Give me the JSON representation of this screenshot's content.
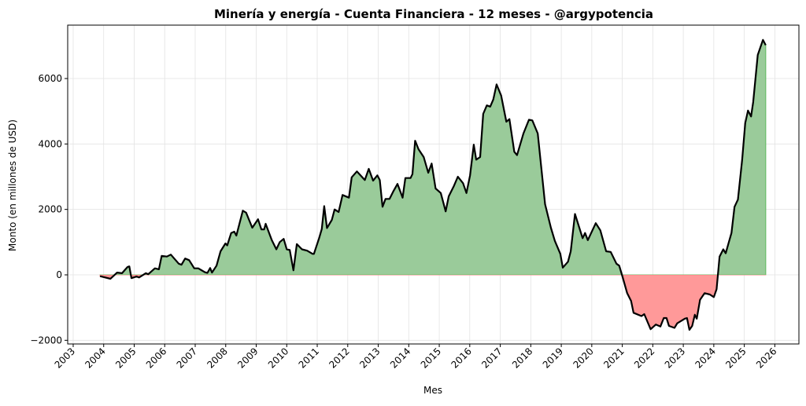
{
  "chart_data": {
    "type": "area",
    "title": "Minería y energía - Cuenta Financiera - 12 meses - @argypotencia",
    "xlabel": "Mes",
    "ylabel": "Monto (en millones de USD)",
    "xlim": [
      2002.82,
      2026.79
    ],
    "ylim": [
      -2112,
      7632
    ],
    "x_ticks": [
      2003,
      2004,
      2005,
      2006,
      2007,
      2008,
      2009,
      2010,
      2011,
      2012,
      2013,
      2014,
      2015,
      2016,
      2017,
      2018,
      2019,
      2020,
      2021,
      2022,
      2023,
      2024,
      2025,
      2026
    ],
    "x_tick_labels": [
      "2003",
      "2004",
      "2005",
      "2006",
      "2007",
      "2008",
      "2009",
      "2010",
      "2011",
      "2012",
      "2013",
      "2014",
      "2015",
      "2016",
      "2017",
      "2018",
      "2019",
      "2020",
      "2021",
      "2022",
      "2023",
      "2024",
      "2025",
      "2026"
    ],
    "y_ticks": [
      -2000,
      0,
      2000,
      4000,
      6000
    ],
    "y_tick_labels": [
      "−2000",
      "0",
      "2000",
      "4000",
      "6000"
    ],
    "grid": true,
    "colors": {
      "line": "#000000",
      "positive_fill": "#9acb9a",
      "negative_fill": "#ff9999",
      "positive_edge": "#6cbf6c"
    },
    "series": [
      {
        "name": "Cuenta Financiera 12 meses",
        "points": [
          [
            2003.88,
            -40
          ],
          [
            2004.22,
            -120
          ],
          [
            2004.44,
            70
          ],
          [
            2004.6,
            50
          ],
          [
            2004.78,
            240
          ],
          [
            2004.84,
            260
          ],
          [
            2004.91,
            -100
          ],
          [
            2005.08,
            -50
          ],
          [
            2005.16,
            -80
          ],
          [
            2005.38,
            50
          ],
          [
            2005.46,
            20
          ],
          [
            2005.68,
            200
          ],
          [
            2005.81,
            170
          ],
          [
            2005.9,
            580
          ],
          [
            2006.07,
            560
          ],
          [
            2006.2,
            620
          ],
          [
            2006.46,
            340
          ],
          [
            2006.55,
            310
          ],
          [
            2006.67,
            500
          ],
          [
            2006.8,
            450
          ],
          [
            2006.97,
            200
          ],
          [
            2007.1,
            200
          ],
          [
            2007.32,
            80
          ],
          [
            2007.4,
            60
          ],
          [
            2007.49,
            210
          ],
          [
            2007.55,
            70
          ],
          [
            2007.7,
            280
          ],
          [
            2007.83,
            720
          ],
          [
            2007.99,
            960
          ],
          [
            2008.05,
            900
          ],
          [
            2008.18,
            1280
          ],
          [
            2008.28,
            1320
          ],
          [
            2008.35,
            1200
          ],
          [
            2008.56,
            1960
          ],
          [
            2008.67,
            1900
          ],
          [
            2008.87,
            1440
          ],
          [
            2009.06,
            1700
          ],
          [
            2009.17,
            1390
          ],
          [
            2009.26,
            1390
          ],
          [
            2009.31,
            1560
          ],
          [
            2009.51,
            1060
          ],
          [
            2009.66,
            780
          ],
          [
            2009.77,
            1000
          ],
          [
            2009.9,
            1100
          ],
          [
            2010.0,
            780
          ],
          [
            2010.1,
            760
          ],
          [
            2010.22,
            140
          ],
          [
            2010.33,
            940
          ],
          [
            2010.5,
            780
          ],
          [
            2010.67,
            740
          ],
          [
            2010.85,
            640
          ],
          [
            2010.89,
            640
          ],
          [
            2011.06,
            1120
          ],
          [
            2011.15,
            1400
          ],
          [
            2011.23,
            2100
          ],
          [
            2011.32,
            1430
          ],
          [
            2011.48,
            1680
          ],
          [
            2011.57,
            2000
          ],
          [
            2011.7,
            1920
          ],
          [
            2011.83,
            2440
          ],
          [
            2012.04,
            2360
          ],
          [
            2012.13,
            2980
          ],
          [
            2012.3,
            3160
          ],
          [
            2012.56,
            2900
          ],
          [
            2012.69,
            3240
          ],
          [
            2012.83,
            2880
          ],
          [
            2012.97,
            3040
          ],
          [
            2013.05,
            2900
          ],
          [
            2013.14,
            2080
          ],
          [
            2013.24,
            2320
          ],
          [
            2013.37,
            2320
          ],
          [
            2013.5,
            2560
          ],
          [
            2013.63,
            2780
          ],
          [
            2013.8,
            2360
          ],
          [
            2013.89,
            2960
          ],
          [
            2014.06,
            2960
          ],
          [
            2014.12,
            3080
          ],
          [
            2014.21,
            4100
          ],
          [
            2014.32,
            3840
          ],
          [
            2014.49,
            3600
          ],
          [
            2014.64,
            3120
          ],
          [
            2014.75,
            3400
          ],
          [
            2014.88,
            2640
          ],
          [
            2015.05,
            2500
          ],
          [
            2015.21,
            1940
          ],
          [
            2015.31,
            2400
          ],
          [
            2015.48,
            2720
          ],
          [
            2015.61,
            3000
          ],
          [
            2015.78,
            2800
          ],
          [
            2015.89,
            2500
          ],
          [
            2016.01,
            3040
          ],
          [
            2016.13,
            3980
          ],
          [
            2016.21,
            3520
          ],
          [
            2016.34,
            3600
          ],
          [
            2016.44,
            4920
          ],
          [
            2016.56,
            5180
          ],
          [
            2016.67,
            5140
          ],
          [
            2016.77,
            5360
          ],
          [
            2016.88,
            5820
          ],
          [
            2017.03,
            5480
          ],
          [
            2017.2,
            4680
          ],
          [
            2017.3,
            4760
          ],
          [
            2017.46,
            3760
          ],
          [
            2017.55,
            3660
          ],
          [
            2017.76,
            4320
          ],
          [
            2017.94,
            4740
          ],
          [
            2018.05,
            4720
          ],
          [
            2018.23,
            4320
          ],
          [
            2018.47,
            2160
          ],
          [
            2018.66,
            1440
          ],
          [
            2018.79,
            1040
          ],
          [
            2018.97,
            640
          ],
          [
            2019.05,
            220
          ],
          [
            2019.22,
            400
          ],
          [
            2019.31,
            720
          ],
          [
            2019.45,
            1860
          ],
          [
            2019.7,
            1120
          ],
          [
            2019.78,
            1280
          ],
          [
            2019.87,
            1060
          ],
          [
            2020.13,
            1580
          ],
          [
            2020.28,
            1360
          ],
          [
            2020.47,
            720
          ],
          [
            2020.62,
            700
          ],
          [
            2020.81,
            340
          ],
          [
            2020.9,
            280
          ],
          [
            2020.99,
            0
          ],
          [
            2021.16,
            -560
          ],
          [
            2021.29,
            -800
          ],
          [
            2021.37,
            -1160
          ],
          [
            2021.63,
            -1260
          ],
          [
            2021.72,
            -1200
          ],
          [
            2021.93,
            -1660
          ],
          [
            2022.1,
            -1520
          ],
          [
            2022.25,
            -1580
          ],
          [
            2022.36,
            -1320
          ],
          [
            2022.45,
            -1320
          ],
          [
            2022.53,
            -1560
          ],
          [
            2022.71,
            -1620
          ],
          [
            2022.8,
            -1480
          ],
          [
            2023.05,
            -1340
          ],
          [
            2023.12,
            -1320
          ],
          [
            2023.2,
            -1680
          ],
          [
            2023.29,
            -1560
          ],
          [
            2023.38,
            -1220
          ],
          [
            2023.44,
            -1340
          ],
          [
            2023.55,
            -760
          ],
          [
            2023.7,
            -560
          ],
          [
            2023.87,
            -600
          ],
          [
            2024.0,
            -680
          ],
          [
            2024.09,
            -440
          ],
          [
            2024.19,
            560
          ],
          [
            2024.31,
            780
          ],
          [
            2024.39,
            660
          ],
          [
            2024.48,
            960
          ],
          [
            2024.58,
            1280
          ],
          [
            2024.68,
            2080
          ],
          [
            2024.79,
            2300
          ],
          [
            2024.93,
            3520
          ],
          [
            2025.03,
            4640
          ],
          [
            2025.12,
            5020
          ],
          [
            2025.22,
            4840
          ],
          [
            2025.29,
            5280
          ],
          [
            2025.44,
            6720
          ],
          [
            2025.61,
            7180
          ],
          [
            2025.7,
            7020
          ]
        ]
      }
    ]
  }
}
